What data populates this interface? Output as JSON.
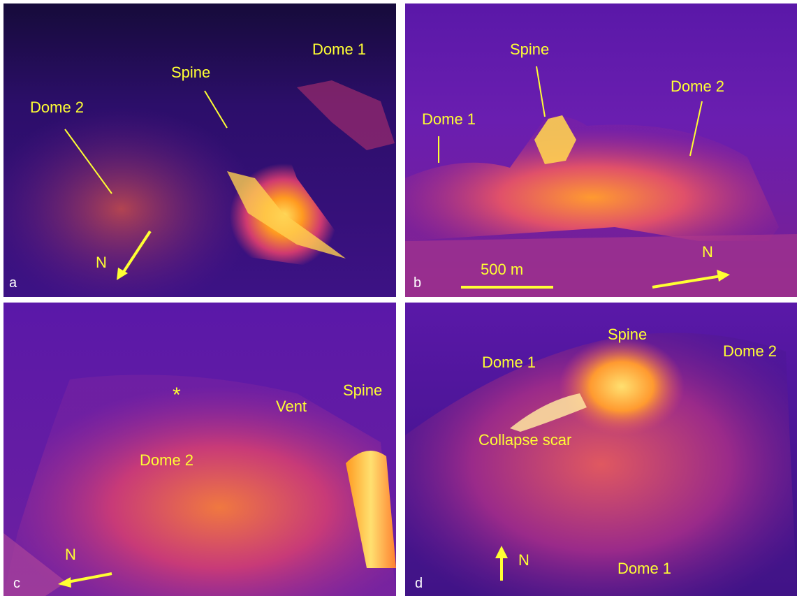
{
  "panels": {
    "a": {
      "letter": "a",
      "labels": {
        "dome1": "Dome 1",
        "spine": "Spine",
        "dome2": "Dome 2",
        "north": "N"
      }
    },
    "b": {
      "letter": "b",
      "labels": {
        "spine": "Spine",
        "dome1": "Dome 1",
        "dome2": "Dome 2",
        "scale": "500 m",
        "north": "N"
      }
    },
    "c": {
      "letter": "c",
      "labels": {
        "spine": "Spine",
        "vent": "Vent",
        "asterisk": "*",
        "dome2": "Dome 2",
        "north": "N"
      }
    },
    "d": {
      "letter": "d",
      "labels": {
        "spine": "Spine",
        "dome1_top": "Dome 1",
        "dome2": "Dome 2",
        "collapse": "Collapse scar",
        "north": "N",
        "dome1_bottom": "Dome 1"
      }
    }
  },
  "colors": {
    "annotation": "#ffff33",
    "panel_letter": "#ffffff",
    "thermal_low": "#3a1180",
    "thermal_mid": "#c2308a",
    "thermal_high": "#ffd23a"
  }
}
